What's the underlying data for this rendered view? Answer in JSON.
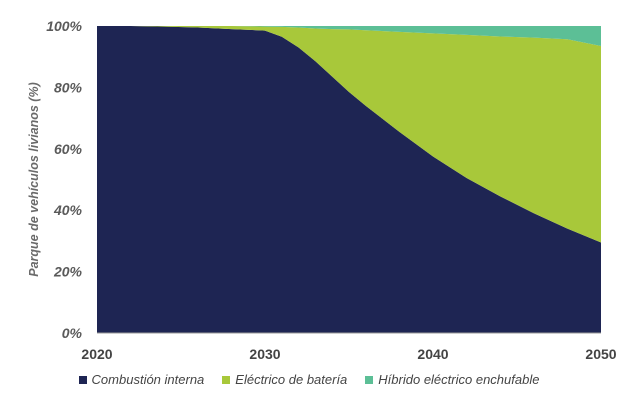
{
  "chart_data": {
    "type": "area",
    "stacked": true,
    "title": "",
    "xlabel": "",
    "ylabel": "Parque de vehículos livianos (%)",
    "xlim": [
      2020,
      2050
    ],
    "ylim": [
      0,
      100
    ],
    "x_ticks": [
      "2020",
      "2030",
      "2040",
      "2050"
    ],
    "y_ticks": [
      "0%",
      "20%",
      "40%",
      "60%",
      "80%",
      "100%"
    ],
    "grid": false,
    "legend_position": "bottom",
    "x": [
      2020,
      2022,
      2024,
      2026,
      2028,
      2030,
      2031,
      2032,
      2033,
      2034,
      2035,
      2036,
      2038,
      2040,
      2042,
      2044,
      2046,
      2048,
      2050
    ],
    "series": [
      {
        "name": "Combustión interna",
        "color": "#1e2553",
        "values": [
          100,
          100,
          99.8,
          99.5,
          99,
          98.5,
          96.5,
          93,
          88.5,
          83.5,
          78.5,
          74,
          65.5,
          57.5,
          50.5,
          44.5,
          39,
          34,
          29.5
        ]
      },
      {
        "name": "Eléctrico de batería",
        "color": "#a8c83a",
        "values": [
          0,
          0,
          0.2,
          0.5,
          1,
          1.3,
          3.2,
          6.5,
          10.7,
          15.5,
          20.4,
          24.6,
          32.6,
          40.1,
          46.6,
          52.1,
          57.2,
          61.7,
          64
        ]
      },
      {
        "name": "Híbrido eléctrico enchufable",
        "color": "#5cbf96",
        "values": [
          0,
          0,
          0,
          0,
          0,
          0.2,
          0.3,
          0.5,
          0.8,
          1,
          1.1,
          1.4,
          1.9,
          2.4,
          2.9,
          3.4,
          3.8,
          4.3,
          6.5
        ]
      }
    ]
  }
}
